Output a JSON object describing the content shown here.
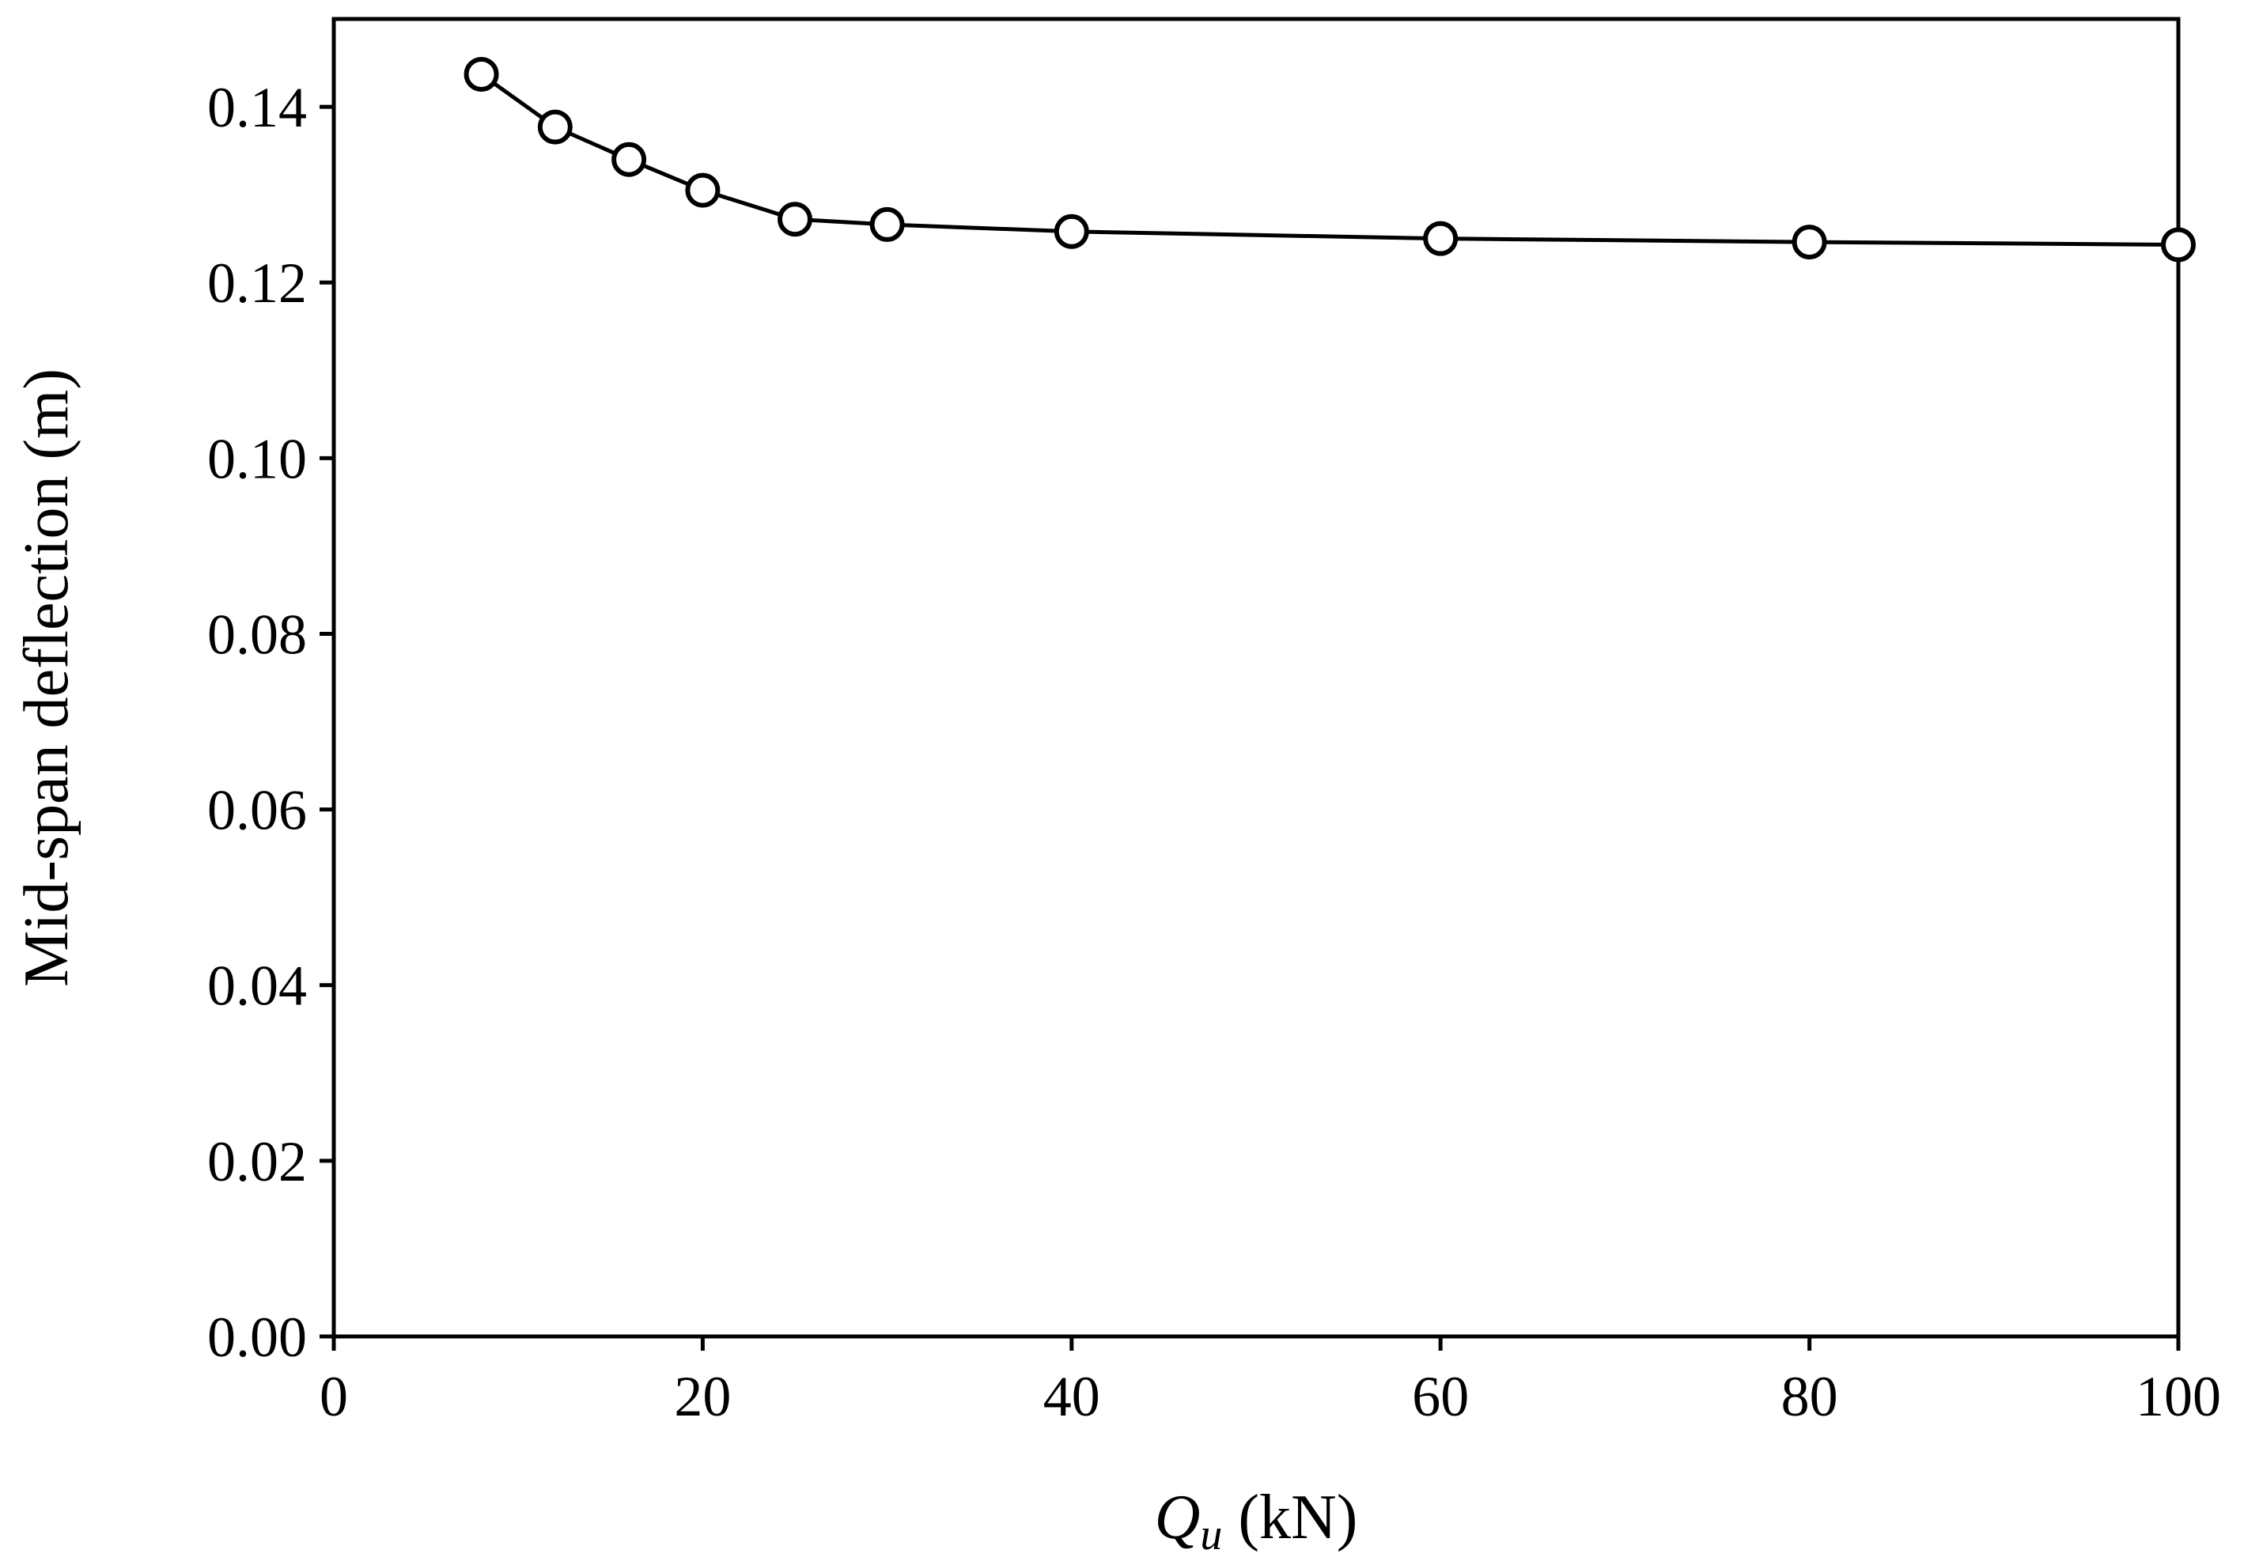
{
  "chart_data": {
    "type": "line",
    "xlabel": {
      "symbol": "Q",
      "subscript": "u",
      "unit": " (kN)"
    },
    "ylabel": "Mid-span deflection (m)",
    "xlim": [
      0,
      100
    ],
    "ylim": [
      0,
      0.15
    ],
    "x_ticks": [
      0,
      20,
      40,
      60,
      80,
      100
    ],
    "x_tick_labels": [
      "0",
      "20",
      "40",
      "60",
      "80",
      "100"
    ],
    "y_ticks": [
      0,
      0.02,
      0.04,
      0.06,
      0.08,
      0.1,
      0.12,
      0.14
    ],
    "y_tick_labels": [
      "0.00",
      "0.02",
      "0.04",
      "0.06",
      "0.08",
      "0.10",
      "0.12",
      "0.14"
    ],
    "grid": false,
    "legend": false,
    "series": [
      {
        "marker": "open-circle",
        "color": "#000000",
        "x": [
          8,
          12,
          16,
          20,
          25,
          30,
          40,
          60,
          80,
          100
        ],
        "y": [
          0.1437,
          0.1377,
          0.134,
          0.1305,
          0.1272,
          0.1266,
          0.1258,
          0.125,
          0.1246,
          0.1243
        ]
      }
    ]
  }
}
